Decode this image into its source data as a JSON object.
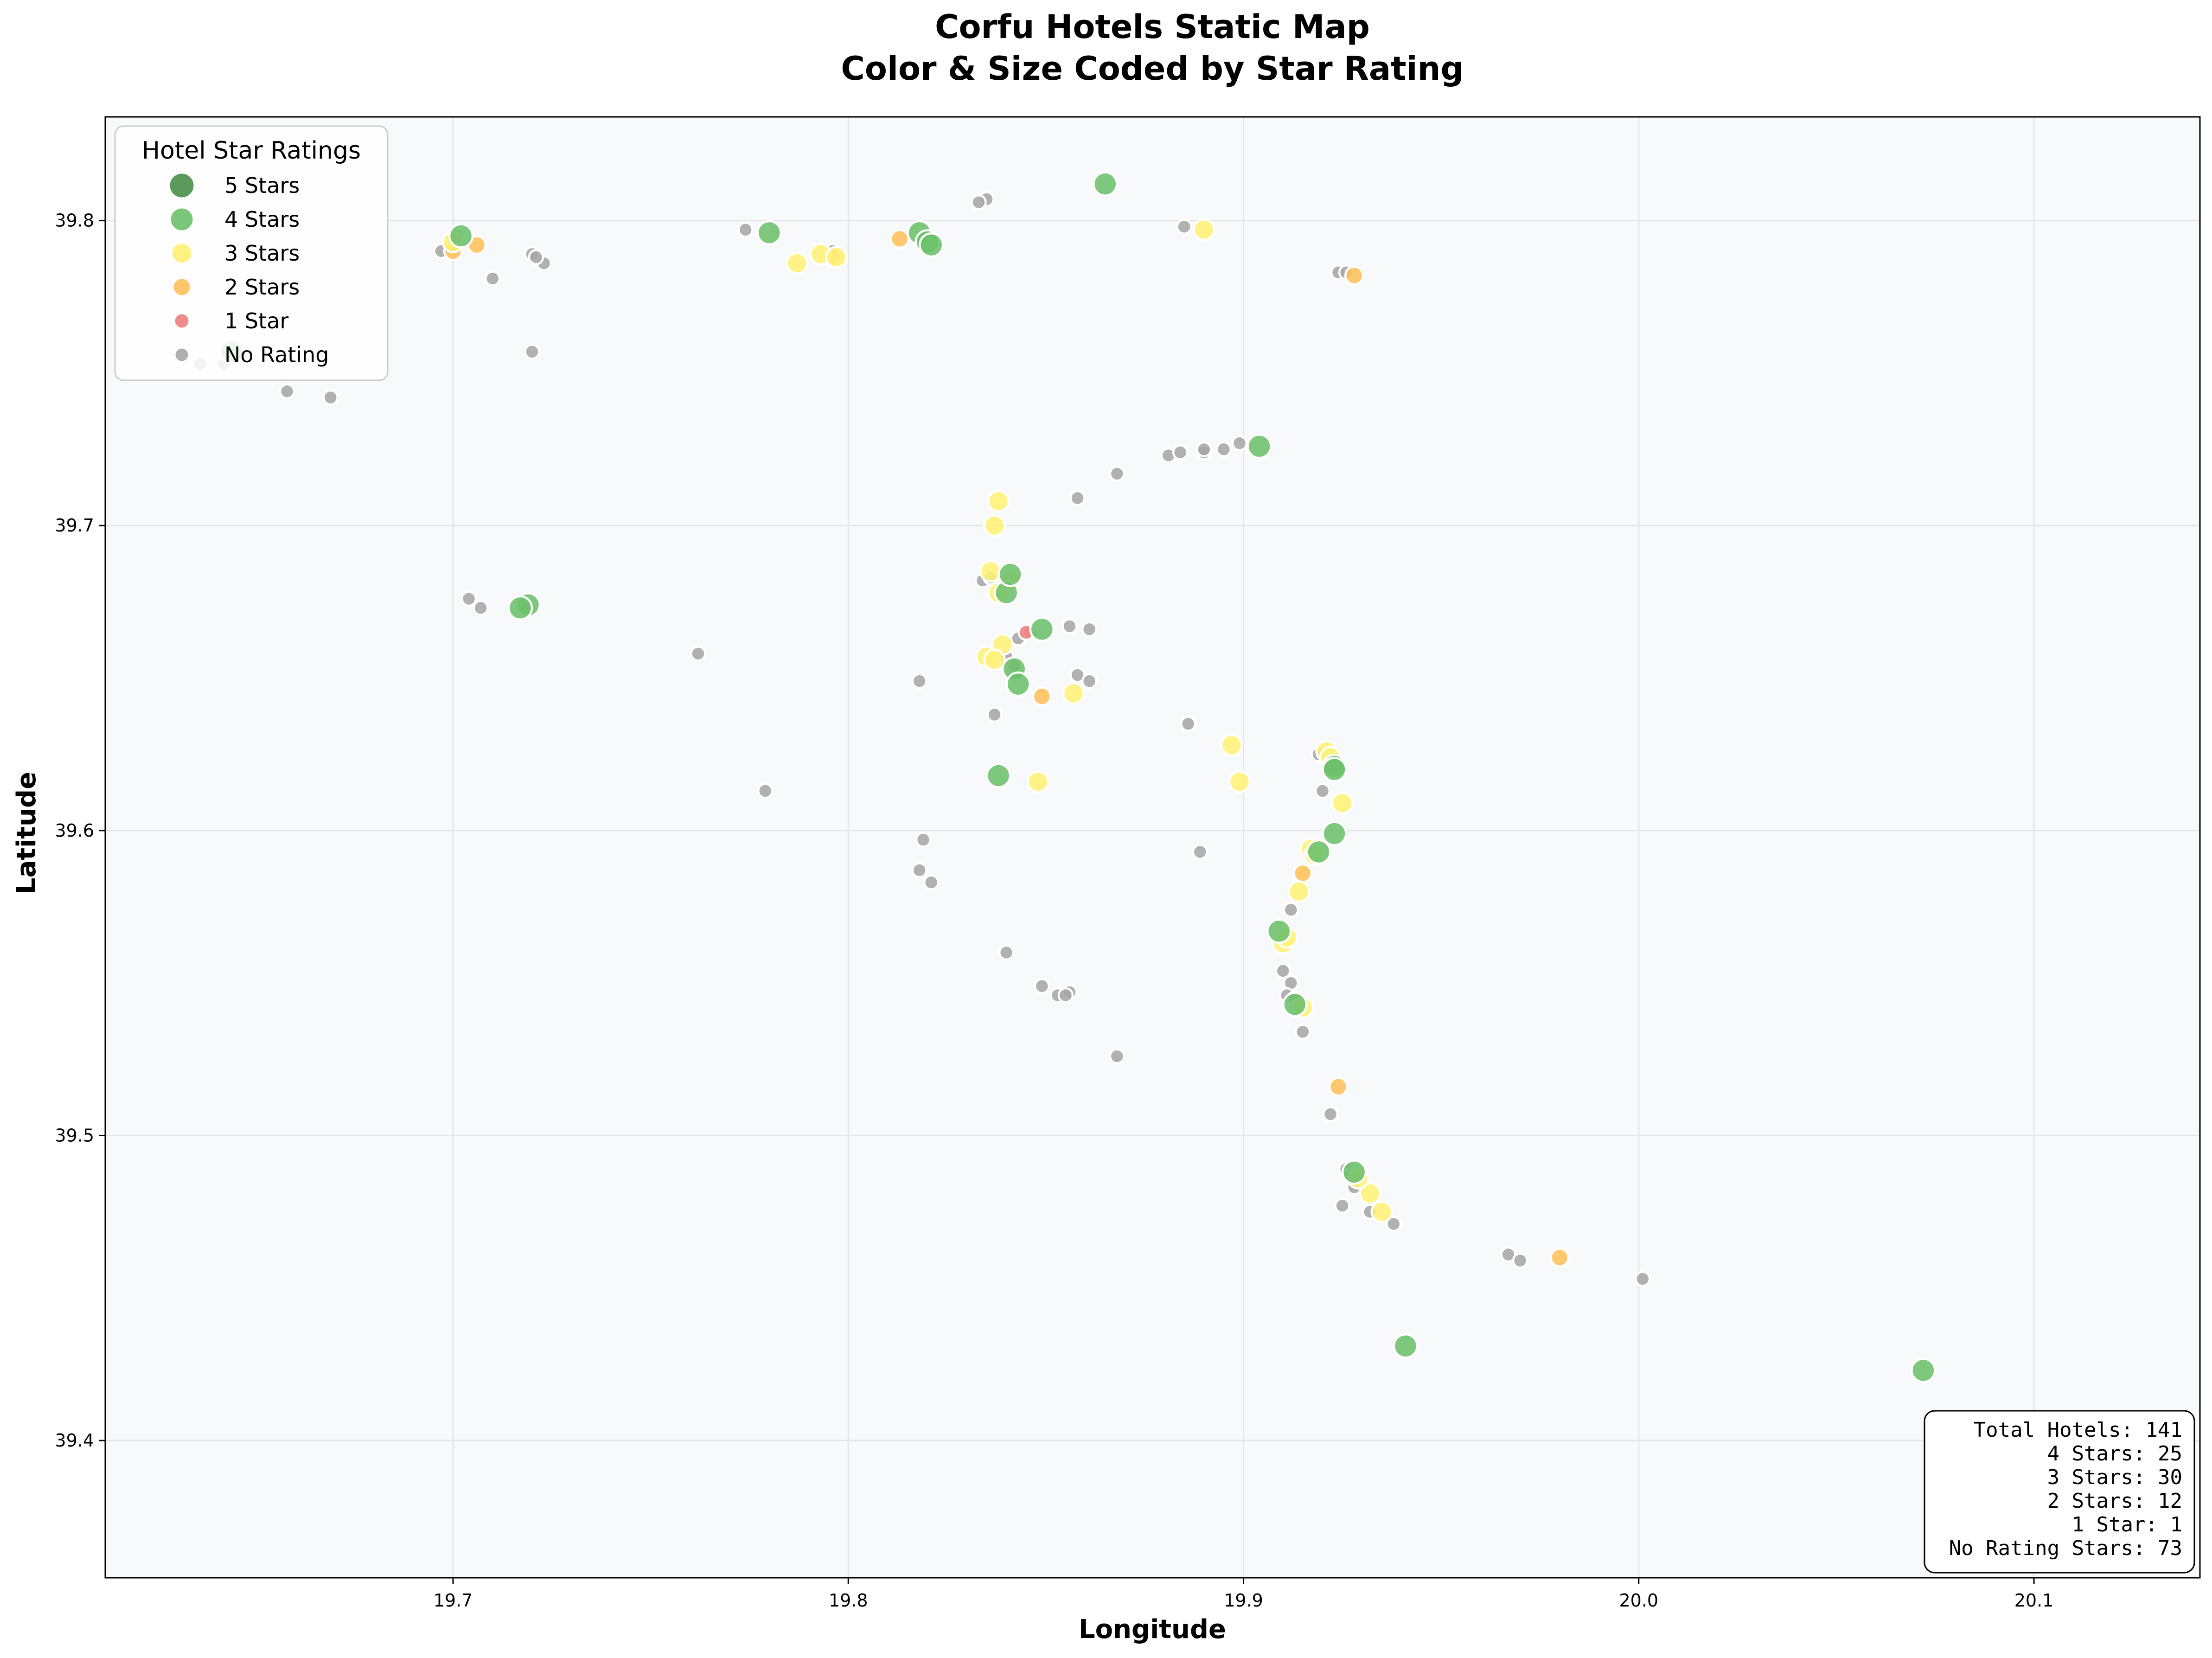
{
  "chart_data": {
    "type": "scatter",
    "title_line1": "Corfu Hotels Static Map",
    "title_line2": "Color & Size Coded by Star Rating",
    "xlabel": "Longitude",
    "ylabel": "Latitude",
    "xlim": [
      19.612,
      20.142
    ],
    "ylim": [
      39.355,
      39.834
    ],
    "xticks": [
      {
        "value": 19.7,
        "label": "19.7"
      },
      {
        "value": 19.8,
        "label": "19.8"
      },
      {
        "value": 19.9,
        "label": "19.9"
      },
      {
        "value": 20.0,
        "label": "20.0"
      },
      {
        "value": 20.1,
        "label": "20.1"
      }
    ],
    "yticks": [
      {
        "value": 39.4,
        "label": "39.4"
      },
      {
        "value": 39.5,
        "label": "39.5"
      },
      {
        "value": 39.6,
        "label": "39.6"
      },
      {
        "value": 39.7,
        "label": "39.7"
      },
      {
        "value": 39.8,
        "label": "39.8"
      }
    ],
    "grid": true,
    "legend_position": "top-left",
    "legend_title": "Hotel Star Ratings",
    "colors": {
      "plot_background": "#f8f9fa",
      "five": "#4a8f4a",
      "four": "#6cc06c",
      "three": "#fff176",
      "two": "#ffbf5a",
      "one": "#f08080",
      "none": "#a6a6a6",
      "edge": "#ffffff"
    },
    "series": [
      {
        "name": "5 Stars",
        "color": "#4a8f4a",
        "size": 5,
        "points": []
      },
      {
        "name": "4 Stars",
        "color": "#6cc06c",
        "size": 4,
        "points": [
          [
            19.865,
            39.812
          ],
          [
            19.78,
            39.796
          ],
          [
            19.818,
            39.796
          ],
          [
            19.82,
            39.793
          ],
          [
            19.904,
            39.726
          ],
          [
            19.719,
            39.674
          ],
          [
            19.717,
            39.673
          ],
          [
            19.84,
            39.678
          ],
          [
            19.849,
            39.666
          ],
          [
            19.842,
            39.653
          ],
          [
            19.843,
            39.648
          ],
          [
            19.838,
            39.618
          ],
          [
            19.923,
            39.621
          ],
          [
            19.923,
            39.599
          ],
          [
            19.919,
            39.593
          ],
          [
            19.909,
            39.567
          ],
          [
            19.941,
            39.431
          ],
          [
            20.072,
            39.423
          ],
          [
            19.928,
            39.488
          ],
          [
            19.913,
            39.543
          ],
          [
            19.821,
            39.792
          ],
          [
            19.841,
            39.684
          ],
          [
            19.644,
            39.757
          ],
          [
            19.702,
            39.795
          ],
          [
            19.923,
            39.62
          ]
        ]
      },
      {
        "name": "3 Stars",
        "color": "#fff176",
        "size": 3,
        "points": [
          [
            19.89,
            39.797
          ],
          [
            19.787,
            39.786
          ],
          [
            19.793,
            39.789
          ],
          [
            19.838,
            39.708
          ],
          [
            19.837,
            39.7
          ],
          [
            19.836,
            39.685
          ],
          [
            19.838,
            39.678
          ],
          [
            19.839,
            39.661
          ],
          [
            19.835,
            39.657
          ],
          [
            19.837,
            39.656
          ],
          [
            19.857,
            39.645
          ],
          [
            19.848,
            39.616
          ],
          [
            19.897,
            39.628
          ],
          [
            19.899,
            39.616
          ],
          [
            19.921,
            39.626
          ],
          [
            19.923,
            39.622
          ],
          [
            19.925,
            39.609
          ],
          [
            19.917,
            39.594
          ],
          [
            19.914,
            39.58
          ],
          [
            19.91,
            39.563
          ],
          [
            19.932,
            39.481
          ],
          [
            19.935,
            39.475
          ],
          [
            19.915,
            39.542
          ],
          [
            19.929,
            39.486
          ],
          [
            19.7,
            39.793
          ],
          [
            19.797,
            39.788
          ],
          [
            19.841,
            39.682
          ],
          [
            19.922,
            39.624
          ],
          [
            19.918,
            39.592
          ],
          [
            19.911,
            39.565
          ]
        ]
      },
      {
        "name": "2 Stars",
        "color": "#ffbf5a",
        "size": 2,
        "points": [
          [
            19.706,
            39.792
          ],
          [
            19.813,
            39.794
          ],
          [
            19.796,
            39.788
          ],
          [
            19.928,
            39.782
          ],
          [
            19.841,
            39.682
          ],
          [
            19.849,
            39.644
          ],
          [
            19.918,
            39.592
          ],
          [
            19.915,
            39.586
          ],
          [
            19.914,
            39.542
          ],
          [
            19.924,
            39.516
          ],
          [
            19.98,
            39.46
          ],
          [
            19.7,
            39.79
          ]
        ]
      },
      {
        "name": "1 Star",
        "color": "#f08080",
        "size": 1,
        "points": [
          [
            19.845,
            39.665
          ]
        ]
      },
      {
        "name": "No Rating",
        "color": "#a6a6a6",
        "size": 0,
        "points": [
          [
            19.835,
            39.807
          ],
          [
            19.885,
            39.798
          ],
          [
            19.924,
            39.783
          ],
          [
            19.774,
            39.797
          ],
          [
            19.697,
            39.79
          ],
          [
            19.701,
            39.795
          ],
          [
            19.72,
            39.789
          ],
          [
            19.723,
            39.786
          ],
          [
            19.71,
            39.781
          ],
          [
            19.72,
            39.757
          ],
          [
            19.796,
            39.79
          ],
          [
            19.636,
            39.753
          ],
          [
            19.642,
            39.753
          ],
          [
            19.658,
            39.744
          ],
          [
            19.669,
            39.742
          ],
          [
            19.858,
            39.709
          ],
          [
            19.868,
            39.717
          ],
          [
            19.881,
            39.723
          ],
          [
            19.884,
            39.724
          ],
          [
            19.89,
            39.724
          ],
          [
            19.895,
            39.725
          ],
          [
            19.899,
            39.727
          ],
          [
            19.704,
            39.676
          ],
          [
            19.707,
            39.673
          ],
          [
            19.762,
            39.658
          ],
          [
            19.834,
            39.682
          ],
          [
            19.84,
            39.657
          ],
          [
            19.843,
            39.663
          ],
          [
            19.846,
            39.665
          ],
          [
            19.856,
            39.667
          ],
          [
            19.861,
            39.666
          ],
          [
            19.858,
            39.651
          ],
          [
            19.861,
            39.649
          ],
          [
            19.818,
            39.649
          ],
          [
            19.837,
            39.638
          ],
          [
            19.779,
            39.613
          ],
          [
            19.819,
            39.597
          ],
          [
            19.818,
            39.587
          ],
          [
            19.821,
            39.583
          ],
          [
            19.886,
            39.635
          ],
          [
            19.889,
            39.593
          ],
          [
            19.92,
            39.613
          ],
          [
            19.919,
            39.625
          ],
          [
            19.912,
            39.574
          ],
          [
            19.84,
            39.56
          ],
          [
            19.849,
            39.549
          ],
          [
            19.853,
            39.546
          ],
          [
            19.856,
            39.547
          ],
          [
            19.868,
            39.526
          ],
          [
            19.91,
            39.554
          ],
          [
            19.912,
            39.55
          ],
          [
            19.911,
            39.546
          ],
          [
            19.913,
            39.544
          ],
          [
            19.915,
            39.534
          ],
          [
            19.922,
            39.507
          ],
          [
            19.926,
            39.489
          ],
          [
            19.928,
            39.483
          ],
          [
            19.925,
            39.477
          ],
          [
            19.932,
            39.475
          ],
          [
            19.938,
            39.471
          ],
          [
            19.967,
            39.461
          ],
          [
            19.97,
            39.459
          ],
          [
            20.001,
            39.453
          ],
          [
            19.842,
            39.654
          ],
          [
            19.855,
            39.546
          ],
          [
            19.89,
            39.725
          ],
          [
            19.927,
            39.487
          ],
          [
            19.7,
            39.794
          ],
          [
            19.833,
            39.806
          ],
          [
            19.926,
            39.783
          ],
          [
            19.721,
            39.788
          ],
          [
            19.836,
            39.683
          ],
          [
            19.913,
            39.545
          ]
        ]
      }
    ],
    "stats_box": {
      "position": "bottom-right",
      "lines": [
        "Total Hotels: 141",
        "4 Stars: 25",
        "3 Stars: 30",
        "2 Stars: 12",
        "1 Star: 1",
        "No Rating Stars: 73"
      ]
    }
  }
}
